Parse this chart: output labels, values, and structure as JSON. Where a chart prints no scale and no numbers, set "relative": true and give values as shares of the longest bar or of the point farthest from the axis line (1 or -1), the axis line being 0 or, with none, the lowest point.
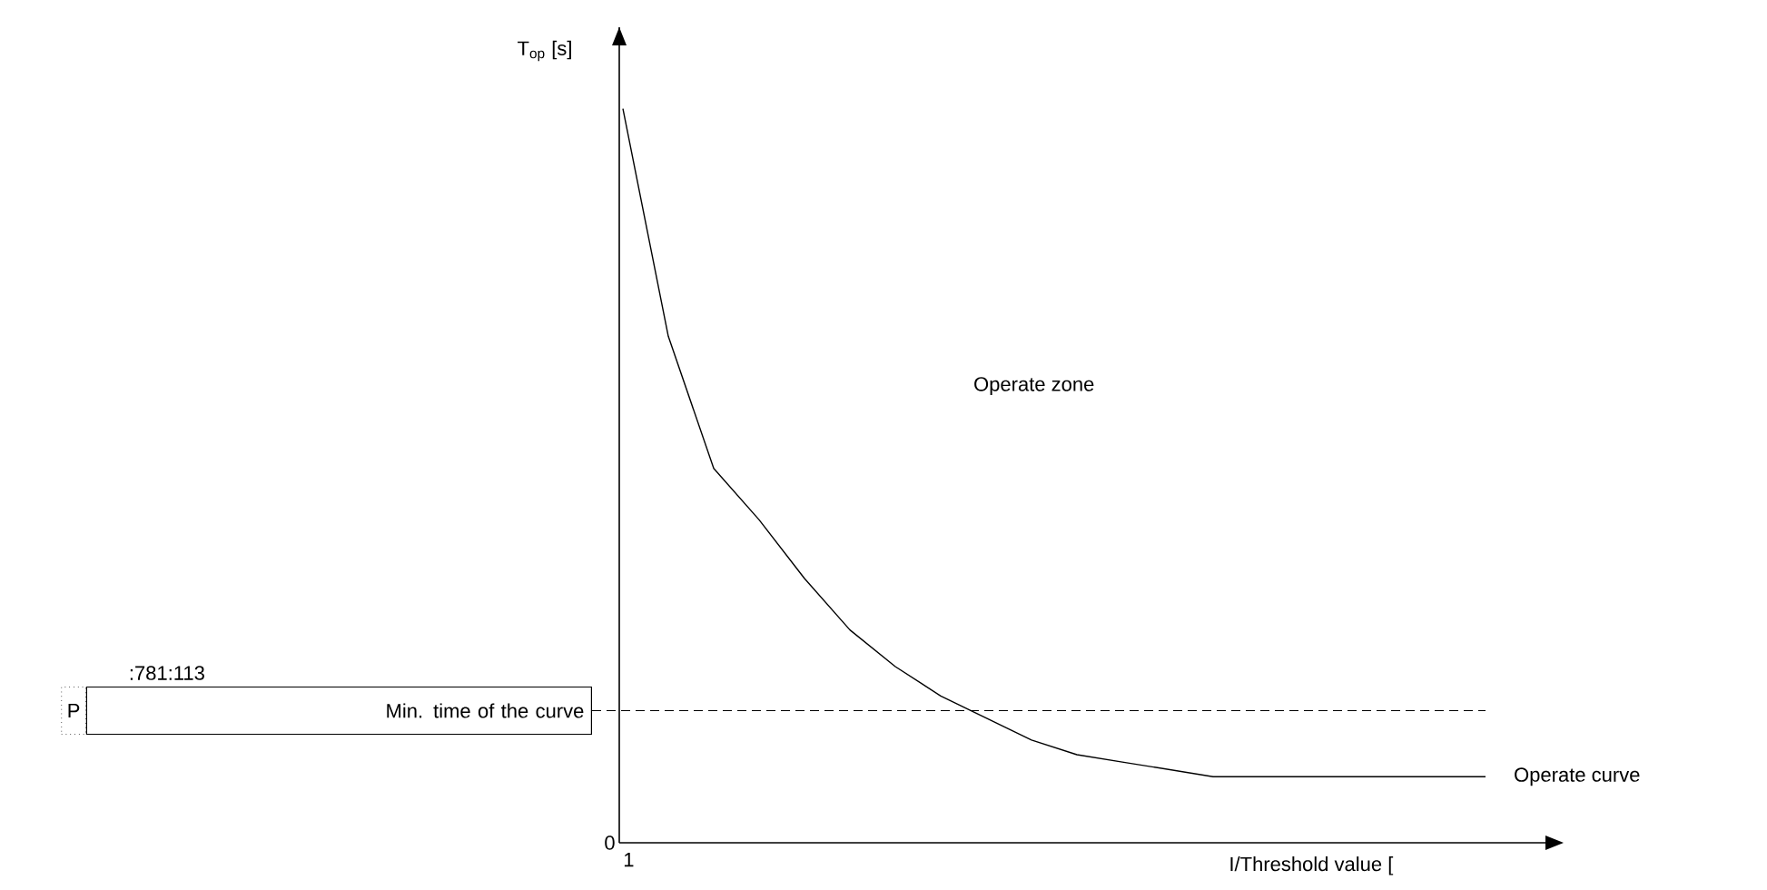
{
  "chart_data": {
    "type": "line",
    "relative": true,
    "xlabel": "I/Threshold value [",
    "ylabel": "T$_{op}$ [s]",
    "categories": [
      null,
      null,
      null,
      null,
      null,
      null,
      null,
      null,
      null,
      null,
      null,
      null,
      null,
      null,
      null,
      null,
      null,
      null,
      null,
      null
    ],
    "series": [
      {
        "name": "Operate curve",
        "color": "#000000",
        "values": [
          1.0,
          0.69,
          0.51,
          0.44,
          0.36,
          0.29,
          0.24,
          0.2,
          0.17,
          0.14,
          0.12,
          0.11,
          0.1,
          0.09,
          0.09,
          0.09,
          0.09,
          0.09,
          0.09,
          0.09
        ]
      }
    ],
    "ref_lines": [
      {
        "axis": "y",
        "value": 0.18,
        "label": "Min. time of the curve",
        "line_style": "dashed",
        "color": "#000000"
      }
    ],
    "annotations": [
      "Operate zone",
      ":781:113",
      "P",
      "0",
      "1"
    ],
    "marker": "none",
    "line_style": "solid"
  }
}
